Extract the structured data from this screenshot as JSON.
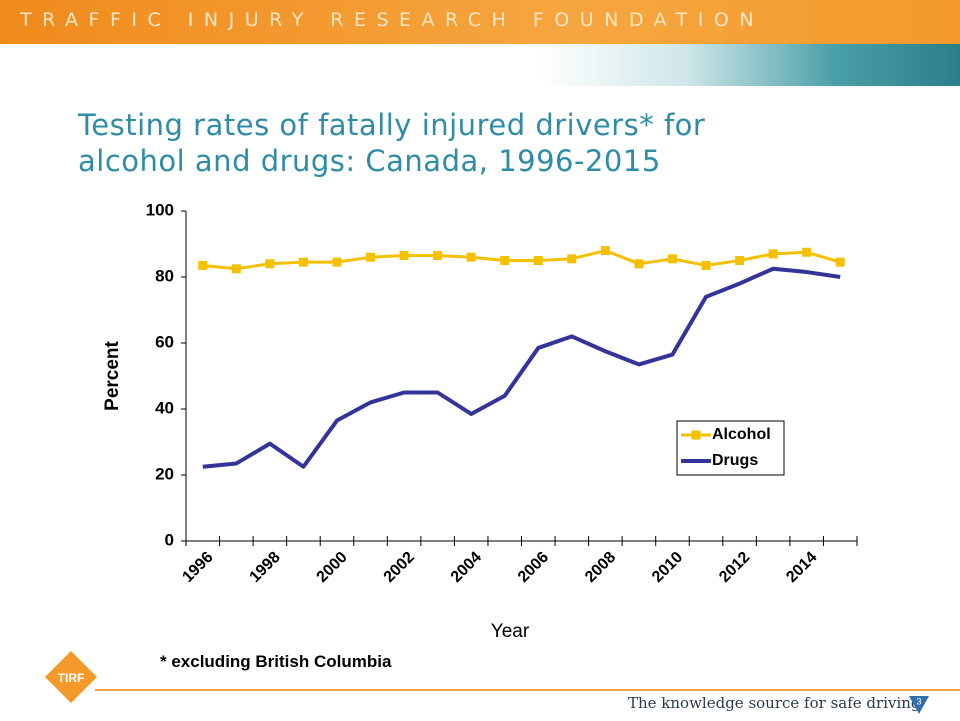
{
  "header": {
    "text": "TRAFFIC INJURY RESEARCH FOUNDATION"
  },
  "title_lines": [
    "Testing rates of fatally injured drivers* for",
    "alcohol and drugs:  Canada, 1996-2015"
  ],
  "chart_data": {
    "type": "line",
    "y_label": "Percent",
    "x_label": "Year",
    "categories": [
      "1996",
      null,
      "1998",
      null,
      "2000",
      null,
      "2002",
      null,
      "2004",
      null,
      "2006",
      null,
      "2008",
      null,
      "2010",
      null,
      "2012",
      null,
      "2014",
      null
    ],
    "series": [
      {
        "name": "Alcohol",
        "color": "#f5c000",
        "marker": "square",
        "values": [
          83.5,
          82.5,
          84,
          84.5,
          84.5,
          86,
          86.5,
          86.5,
          86,
          85,
          85,
          85.5,
          88,
          84,
          85.5,
          83.5,
          85,
          87,
          87.5,
          84.5
        ]
      },
      {
        "name": "Drugs",
        "color": "#333399",
        "values": [
          22.5,
          23.5,
          29.5,
          22.5,
          36.5,
          42,
          45,
          45,
          38.5,
          44,
          58.5,
          62,
          57.5,
          53.5,
          56.5,
          74,
          78,
          82.5,
          81.5,
          80
        ]
      }
    ],
    "ylim": [
      0,
      100
    ],
    "yticks": [
      0,
      20,
      40,
      60,
      80,
      100
    ],
    "grid": false,
    "legend": "lower-right"
  },
  "footnote": "* excluding British Columbia",
  "logo": "TIRF",
  "footer": "The knowledge source for safe driving",
  "page_number": "3"
}
